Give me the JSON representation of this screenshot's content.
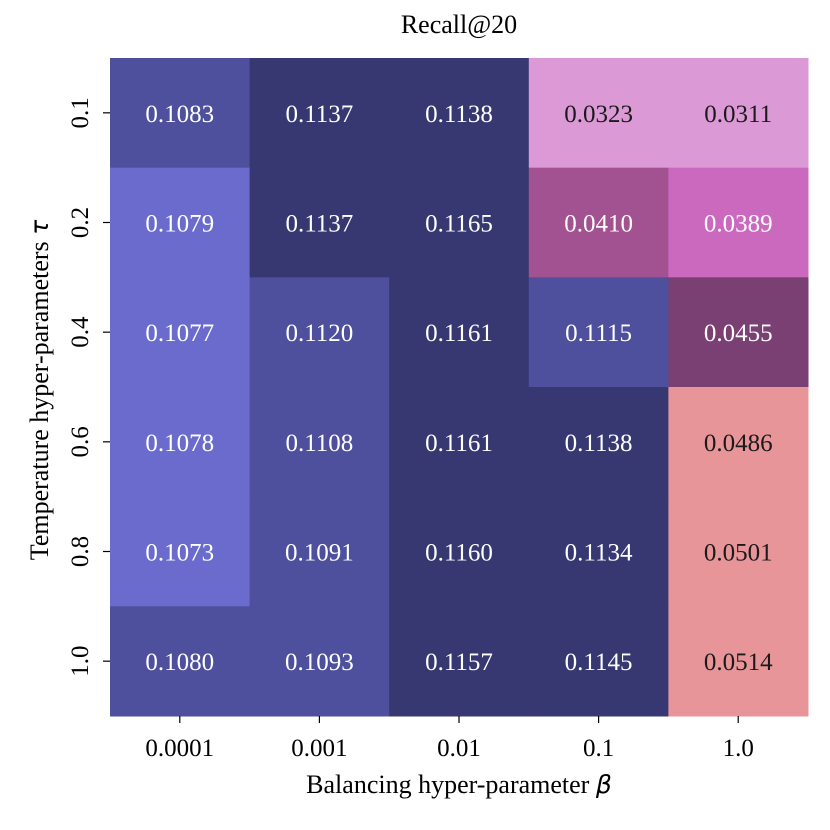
{
  "chart_data": {
    "type": "heatmap",
    "title": "Recall@20",
    "xlabel": "Balancing hyper-parameter",
    "xlabel_symbol": "β",
    "ylabel": "Temperature hyper-parameters",
    "ylabel_symbol": "τ",
    "x_categories": [
      "0.0001",
      "0.001",
      "0.01",
      "0.1",
      "1.0"
    ],
    "y_categories": [
      "0.1",
      "0.2",
      "0.4",
      "0.6",
      "0.8",
      "1.0"
    ],
    "values": [
      [
        "0.1083",
        "0.1137",
        "0.1138",
        "0.0323",
        "0.0311"
      ],
      [
        "0.1079",
        "0.1137",
        "0.1165",
        "0.0410",
        "0.0389"
      ],
      [
        "0.1077",
        "0.1120",
        "0.1161",
        "0.1115",
        "0.0455"
      ],
      [
        "0.1078",
        "0.1108",
        "0.1161",
        "0.1138",
        "0.0486"
      ],
      [
        "0.1073",
        "0.1091",
        "0.1160",
        "0.1134",
        "0.0501"
      ],
      [
        "0.1080",
        "0.1093",
        "0.1157",
        "0.1145",
        "0.0514"
      ]
    ],
    "cell_colors": [
      [
        "#4e4f9d",
        "#373872",
        "#373872",
        "#db9ad5",
        "#db9ad5"
      ],
      [
        "#6a6bcd",
        "#373872",
        "#373872",
        "#a25291",
        "#cb69bf"
      ],
      [
        "#6a6bcd",
        "#4e4f9d",
        "#373872",
        "#4e4f9d",
        "#7a3f73"
      ],
      [
        "#6a6bcd",
        "#4e4f9d",
        "#373872",
        "#373872",
        "#e8959a"
      ],
      [
        "#6a6bcd",
        "#4e4f9d",
        "#373872",
        "#373872",
        "#e8959a"
      ],
      [
        "#4e4f9d",
        "#4e4f9d",
        "#373872",
        "#373872",
        "#e8959a"
      ]
    ],
    "dark_text_color": "#1a1a1a",
    "light_text_color": "#ffffff"
  }
}
